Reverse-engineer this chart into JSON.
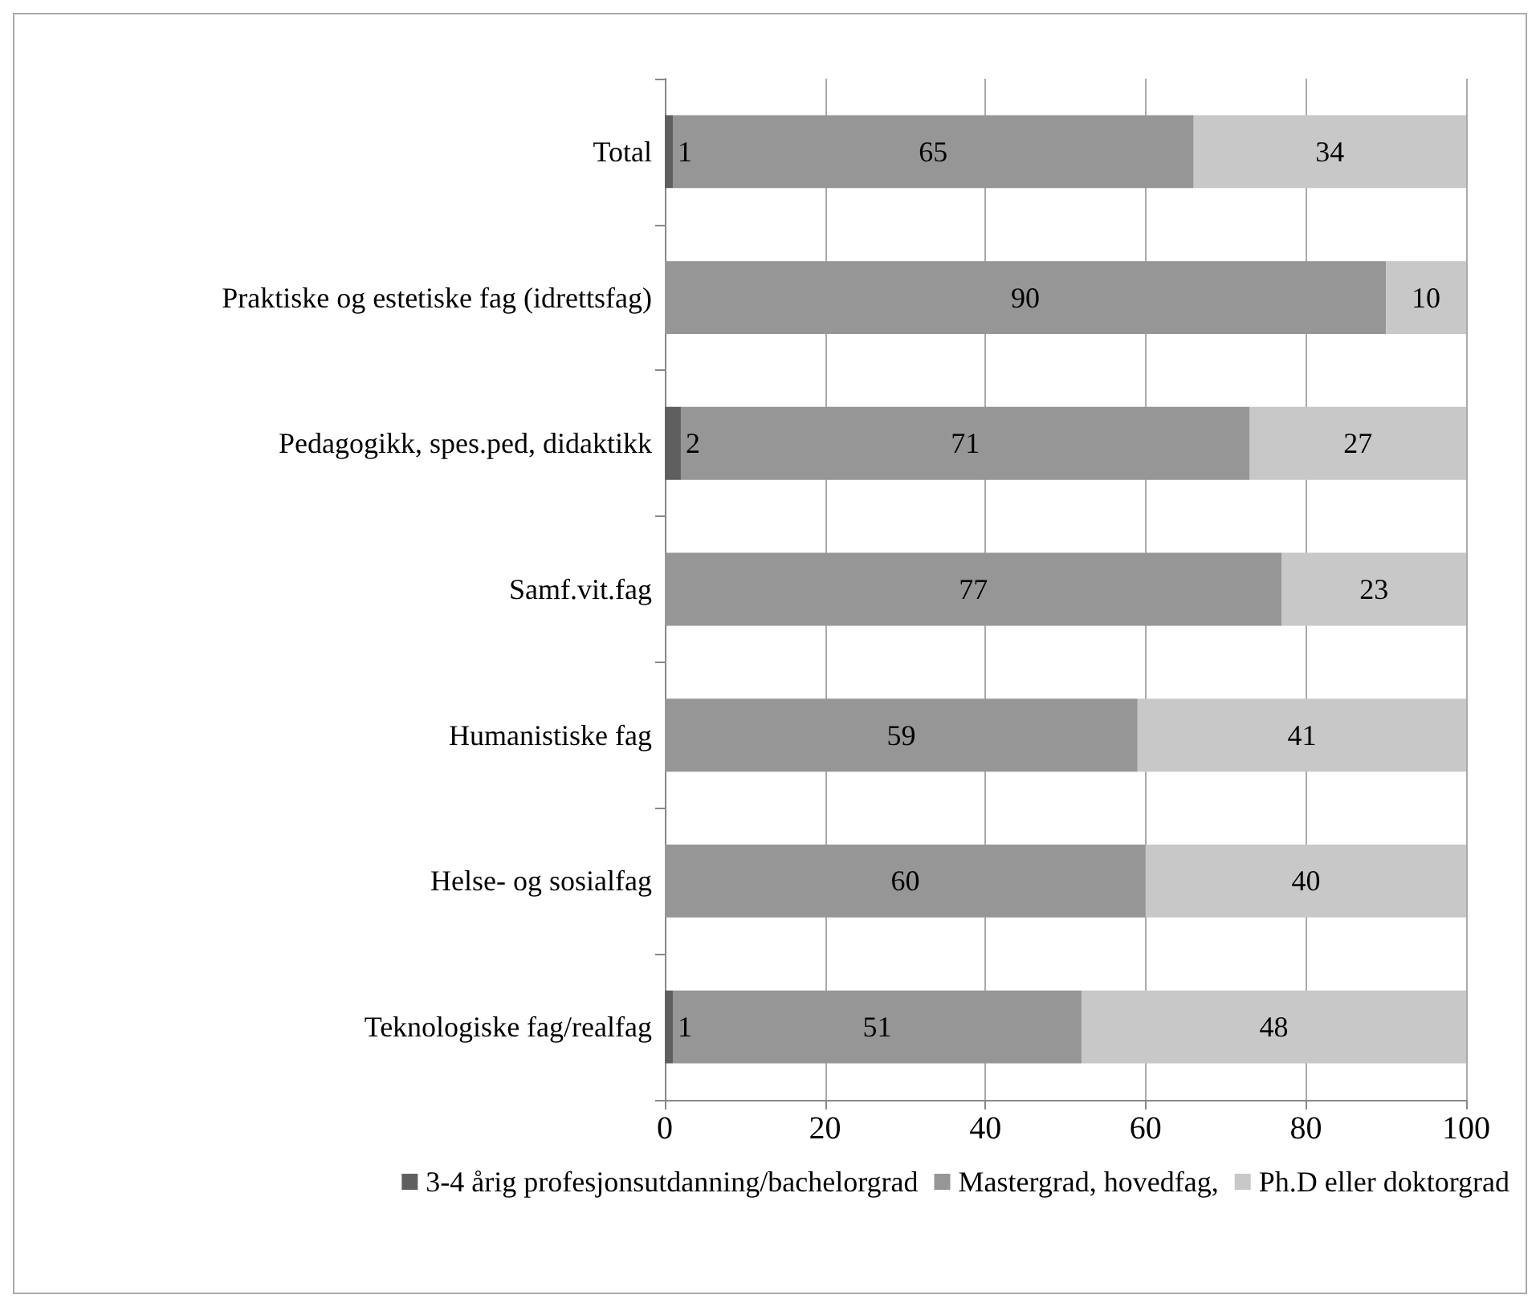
{
  "chart_data": {
    "type": "bar",
    "orientation": "horizontal",
    "stacked": true,
    "data_labels": true,
    "grid": "x",
    "legend": "bottom",
    "categories": [
      "Total",
      "Praktiske og estetiske fag (idrettsfag)",
      "Pedagogikk, spes.ped, didaktikk",
      "Samf.vit.fag",
      "Humanistiske fag",
      "Helse- og sosialfag",
      "Teknologiske fag/realfag"
    ],
    "series": [
      {
        "name": "3-4 årig profesjonsutdanning/bachelorgrad",
        "color": "#5f5f5f",
        "values": [
          1,
          null,
          2,
          null,
          null,
          null,
          1
        ]
      },
      {
        "name": "Mastergrad, hovedfag,",
        "color": "#969696",
        "values": [
          65,
          90,
          71,
          77,
          59,
          60,
          51
        ]
      },
      {
        "name": "Ph.D eller doktorgrad",
        "color": "#c8c8c8",
        "values": [
          34,
          10,
          27,
          23,
          41,
          40,
          48
        ]
      }
    ],
    "xlim": [
      0,
      100
    ],
    "xticks": [
      0,
      20,
      40,
      60,
      80,
      100
    ]
  }
}
